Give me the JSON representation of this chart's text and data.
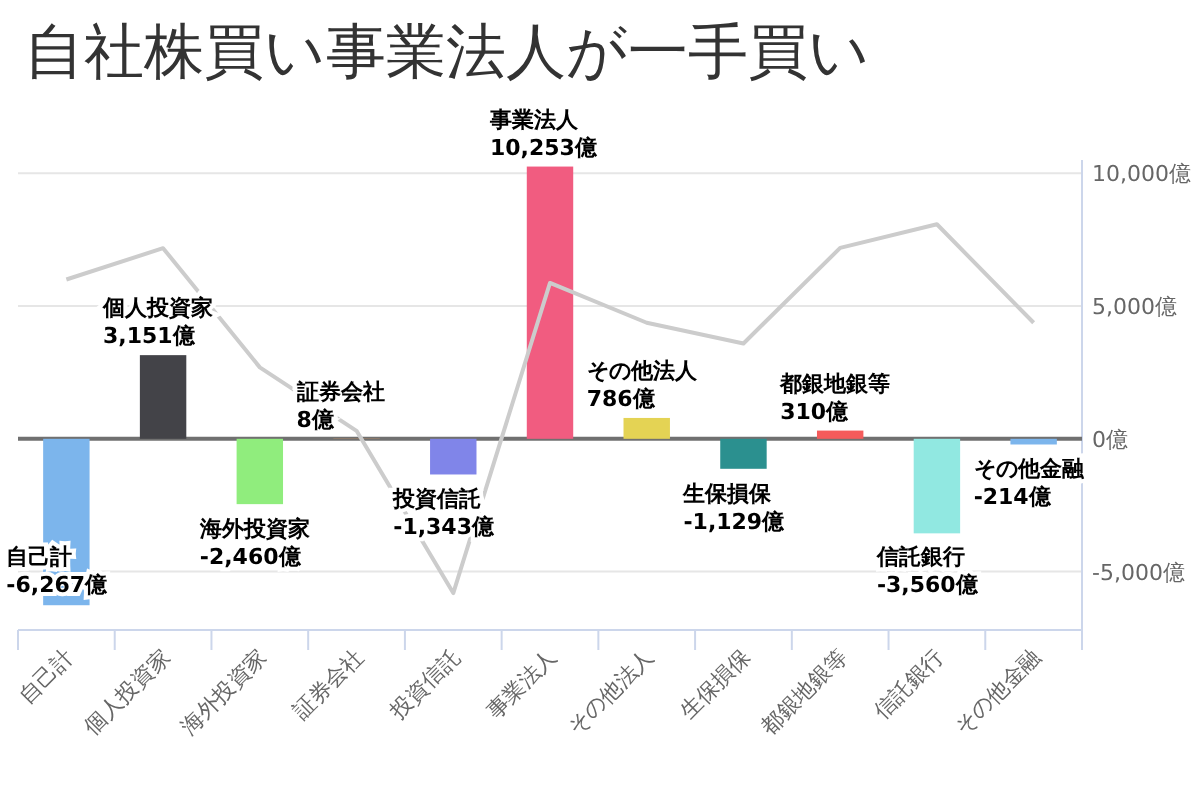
{
  "chart_data": {
    "type": "bar",
    "title": "自社株買い事業法人が一手買い",
    "categories": [
      "自己計",
      "個人投資家",
      "海外投資家",
      "証券会社",
      "投資信託",
      "事業法人",
      "その他法人",
      "生保損保",
      "都銀地銀等",
      "信託銀行",
      "その他金融"
    ],
    "series": [
      {
        "type": "line",
        "color": "#cccccc",
        "values": [
          6000,
          7180,
          2690,
          300,
          -5810,
          5870,
          4370,
          3590,
          7190,
          8080,
          4370
        ]
      },
      {
        "colors": [
          "#7cb5ec",
          "#434348",
          "#90ed7d",
          "#f7a35c",
          "#8085e9",
          "#f15c80",
          "#e4d354",
          "#2b908f",
          "#f45b5b",
          "#91e8e1",
          "#7cb5ec"
        ],
        "values": [
          -6267,
          3151,
          -2460,
          8,
          -1343,
          10253,
          786,
          -1129,
          310,
          -3560,
          -214
        ],
        "value_labels": [
          "-6,267億",
          "3,151億",
          "-2,460億",
          "8億",
          "-1,343億",
          "10,253億",
          "786億",
          "-1,129億",
          "310億",
          "-3,560億",
          "-214億"
        ]
      }
    ],
    "ylim": [
      -7200,
      10500
    ],
    "yticks": [
      {
        "value": -5000,
        "label": "-5,000億"
      },
      {
        "value": 0,
        "label": "0億"
      },
      {
        "value": 5000,
        "label": "5,000億"
      },
      {
        "value": 10000,
        "label": "10,000億"
      }
    ],
    "grid": "y",
    "ref_lines": [
      {
        "axis": "y",
        "value": 0,
        "color": "#707070"
      }
    ]
  }
}
